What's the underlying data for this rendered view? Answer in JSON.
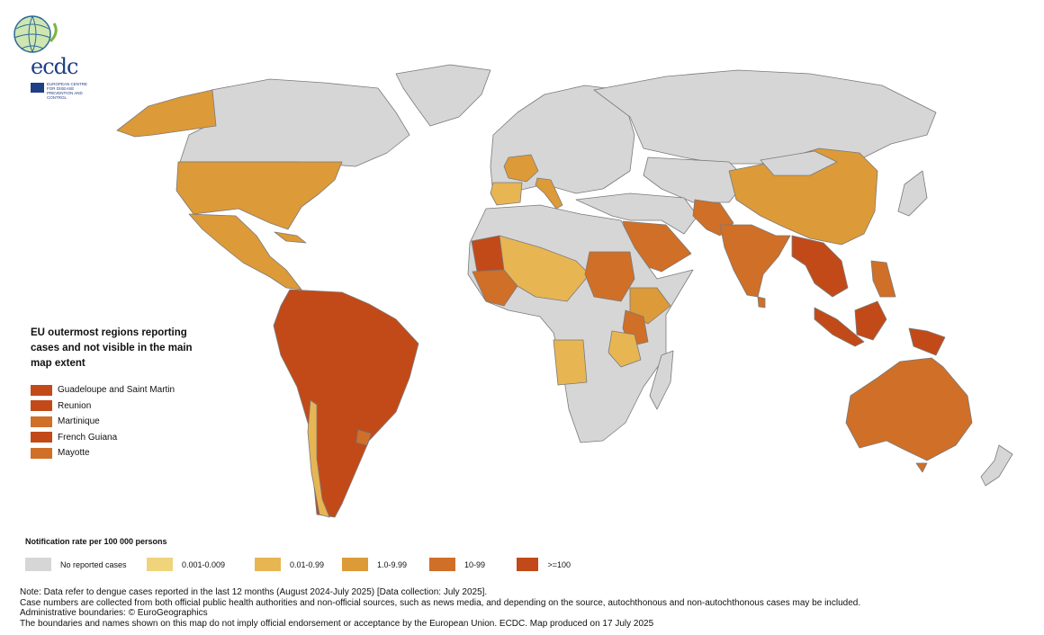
{
  "logo": {
    "text": "ecdc",
    "subtitle": "EUROPEAN CENTRE FOR DISEASE PREVENTION AND CONTROL"
  },
  "inset_legend": {
    "title": "EU outermost regions reporting cases and not visible in the main map extent",
    "items": [
      {
        "label": "Guadeloupe and Saint Martin",
        "class": ">=100"
      },
      {
        "label": "Reunion",
        "class": ">=100"
      },
      {
        "label": "Martinique",
        "class": "10-99"
      },
      {
        "label": "French Guiana",
        "class": ">=100"
      },
      {
        "label": "Mayotte",
        "class": "10-99"
      }
    ]
  },
  "legend": {
    "title": "Notification rate per 100 000 persons",
    "classes": [
      {
        "label": "No reported cases",
        "color": "#d6d6d6"
      },
      {
        "label": "0.001-0.009",
        "color": "#efd47b"
      },
      {
        "label": "0.01-0.99",
        "color": "#e8b553"
      },
      {
        "label": "1.0-9.99",
        "color": "#dd9a38"
      },
      {
        "label": "10-99",
        "color": "#d06f27"
      },
      {
        "label": ">=100",
        "color": "#c24a19"
      }
    ]
  },
  "notes": [
    "Note: Data refer to dengue cases reported in the last 12 months (August 2024-July 2025) [Data collection: July 2025].",
    "Case numbers are collected from both official public health authorities and non-official sources, such as news media, and depending on the source, autochthonous and non-autochthonous cases may be included.",
    "Administrative boundaries: © EuroGeographics",
    "The boundaries and names shown on this map do not imply official endorsement or acceptance by the European Union. ECDC. Map produced on 17 July 2025"
  ]
}
